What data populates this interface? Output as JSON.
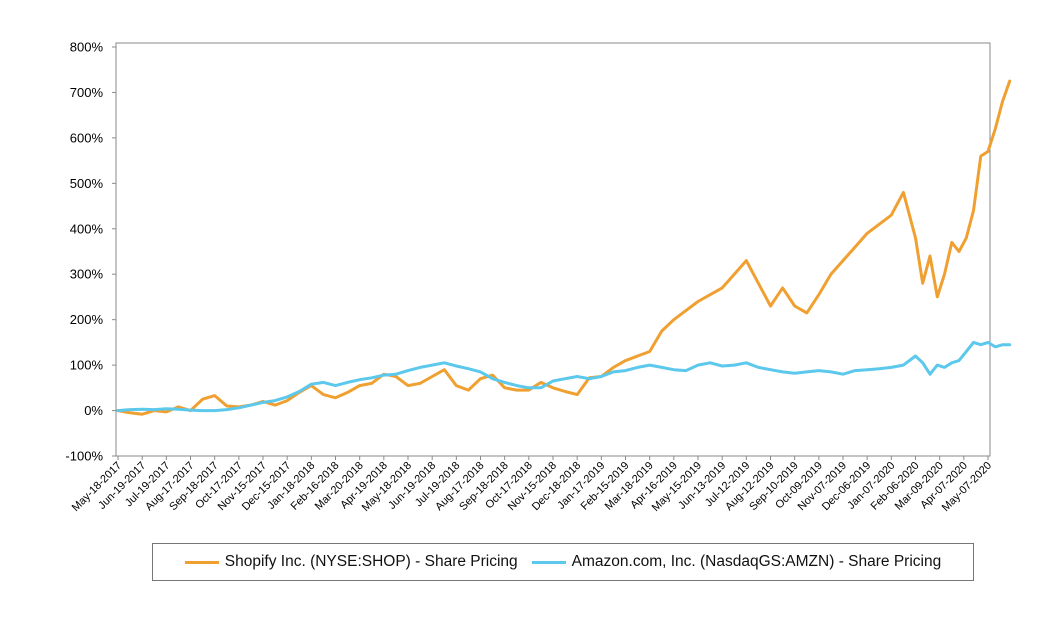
{
  "chart_data": {
    "type": "line",
    "title": "",
    "xlabel": "",
    "ylabel": "",
    "ylim": [
      -100,
      800
    ],
    "yticks": [
      -100,
      0,
      100,
      200,
      300,
      400,
      500,
      600,
      700,
      800
    ],
    "ytick_labels": [
      "-100%",
      "0%",
      "100%",
      "200%",
      "300%",
      "400%",
      "500%",
      "600%",
      "700%",
      "800%"
    ],
    "x_tick_labels": [
      "May-18-2017",
      "Jun-19-2017",
      "Jul-19-2017",
      "Aug-17-2017",
      "Sep-18-2017",
      "Oct-17-2017",
      "Nov-15-2017",
      "Dec-15-2017",
      "Jan-18-2018",
      "Feb-16-2018",
      "Mar-20-2018",
      "Apr-19-2018",
      "May-18-2018",
      "Jun-19-2018",
      "Jul-19-2018",
      "Aug-17-2018",
      "Sep-18-2018",
      "Oct-17-2018",
      "Nov-15-2018",
      "Dec-18-2018",
      "Jan-17-2019",
      "Feb-15-2019",
      "Mar-18-2019",
      "Apr-16-2019",
      "May-15-2019",
      "Jun-13-2019",
      "Jul-12-2019",
      "Aug-12-2019",
      "Sep-10-2019",
      "Oct-09-2019",
      "Nov-07-2019",
      "Dec-06-2019",
      "Jan-07-2020",
      "Feb-06-2020",
      "Mar-09-2020",
      "Apr-07-2020",
      "May-07-2020"
    ],
    "grid": false,
    "legend_position": "bottom",
    "series": [
      {
        "name": "Shopify Inc. (NYSE:SHOP) - Share Pricing",
        "color": "#F0A030",
        "x": [
          0,
          0.5,
          1,
          1.5,
          2,
          2.5,
          3,
          3.5,
          4,
          4.5,
          5,
          5.5,
          6,
          6.5,
          7,
          7.5,
          8,
          8.5,
          9,
          9.5,
          10,
          10.5,
          11,
          11.5,
          12,
          12.5,
          13,
          13.5,
          14,
          14.5,
          15,
          15.5,
          16,
          16.5,
          17,
          17.5,
          18,
          18.5,
          19,
          19.5,
          20,
          20.5,
          21,
          21.5,
          22,
          22.5,
          23,
          23.5,
          24,
          24.5,
          25,
          25.5,
          26,
          26.5,
          27,
          27.5,
          28,
          28.5,
          29,
          29.5,
          30,
          30.5,
          31,
          31.5,
          32,
          32.5,
          33,
          33.3,
          33.6,
          33.9,
          34.2,
          34.5,
          34.8,
          35.1,
          35.4,
          35.7,
          36,
          36.3,
          36.6,
          36.9
        ],
        "values": [
          0,
          -5,
          -8,
          0,
          -3,
          8,
          0,
          25,
          33,
          10,
          8,
          12,
          20,
          12,
          22,
          40,
          55,
          35,
          28,
          40,
          55,
          60,
          80,
          75,
          55,
          60,
          75,
          90,
          55,
          45,
          70,
          78,
          50,
          45,
          45,
          62,
          50,
          42,
          35,
          72,
          75,
          95,
          110,
          120,
          130,
          175,
          200,
          220,
          240,
          255,
          270,
          300,
          330,
          280,
          230,
          270,
          230,
          215,
          255,
          300,
          330,
          360,
          390,
          410,
          430,
          480,
          380,
          280,
          340,
          250,
          300,
          370,
          350,
          380,
          440,
          560,
          570,
          620,
          680,
          725
        ]
      },
      {
        "name": "Amazon.com, Inc. (NasdaqGS:AMZN) - Share Pricing",
        "color": "#5BC8EC",
        "x": [
          0,
          0.5,
          1,
          1.5,
          2,
          2.5,
          3,
          3.5,
          4,
          4.5,
          5,
          5.5,
          6,
          6.5,
          7,
          7.5,
          8,
          8.5,
          9,
          9.5,
          10,
          10.5,
          11,
          11.5,
          12,
          12.5,
          13,
          13.5,
          14,
          14.5,
          15,
          15.5,
          16,
          16.5,
          17,
          17.5,
          18,
          18.5,
          19,
          19.5,
          20,
          20.5,
          21,
          21.5,
          22,
          22.5,
          23,
          23.5,
          24,
          24.5,
          25,
          25.5,
          26,
          26.5,
          27,
          27.5,
          28,
          28.5,
          29,
          29.5,
          30,
          30.5,
          31,
          31.5,
          32,
          32.5,
          33,
          33.3,
          33.6,
          33.9,
          34.2,
          34.5,
          34.8,
          35.1,
          35.4,
          35.7,
          36,
          36.3,
          36.6,
          36.9
        ],
        "values": [
          0,
          2,
          3,
          2,
          4,
          3,
          1,
          0,
          0,
          2,
          6,
          12,
          18,
          22,
          30,
          42,
          58,
          62,
          55,
          62,
          68,
          72,
          78,
          80,
          88,
          95,
          100,
          105,
          98,
          92,
          85,
          70,
          62,
          55,
          50,
          50,
          65,
          70,
          75,
          70,
          75,
          85,
          88,
          95,
          100,
          95,
          90,
          88,
          100,
          105,
          98,
          100,
          105,
          95,
          90,
          85,
          82,
          85,
          88,
          85,
          80,
          88,
          90,
          92,
          95,
          100,
          120,
          105,
          80,
          100,
          95,
          105,
          110,
          130,
          150,
          145,
          150,
          140,
          145,
          145
        ]
      }
    ]
  }
}
